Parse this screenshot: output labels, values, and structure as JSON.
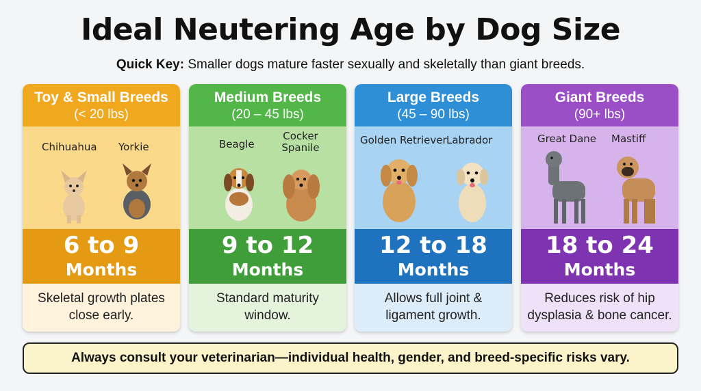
{
  "title": "Ideal Neutering Age by Dog Size",
  "quick_key": {
    "label": "Quick Key:",
    "text": "Smaller dogs mature faster sexually and skeletally than giant breeds."
  },
  "cards": [
    {
      "name": "Toy & Small Breeds",
      "weight": "(< 20 lbs)",
      "breeds": [
        "Chihuahua",
        "Yorkie"
      ],
      "age_range": "6 to 9",
      "age_unit": "Months",
      "note": "Skeletal growth plates close early.",
      "colors": {
        "head": "#f0a81f",
        "image": "#fbd98a",
        "age": "#e59a14",
        "note": "#fdf3dc"
      }
    },
    {
      "name": "Medium Breeds",
      "weight": "(20 – 45 lbs)",
      "breeds": [
        "Beagle",
        "Cocker Spanile"
      ],
      "age_range": "9 to 12",
      "age_unit": "Months",
      "note": "Standard maturity window.",
      "colors": {
        "head": "#52b648",
        "image": "#b8e0a3",
        "age": "#3f9e3a",
        "note": "#e3f3dc"
      }
    },
    {
      "name": "Large Breeds",
      "weight": "(45 – 90 lbs)",
      "breeds": [
        "Golden Retriever",
        "Labrador"
      ],
      "age_range": "12 to 18",
      "age_unit": "Months",
      "note": "Allows full joint & ligament growth.",
      "colors": {
        "head": "#2f8fd6",
        "image": "#a9d3f2",
        "age": "#1f72bd",
        "note": "#dcedf9"
      }
    },
    {
      "name": "Giant Breeds",
      "weight": "(90+ lbs)",
      "breeds": [
        "Great Dane",
        "Mastiff"
      ],
      "age_range": "18 to 24",
      "age_unit": "Months",
      "note": "Reduces risk of hip dysplasia & bone cancer.",
      "colors": {
        "head": "#9a4fc6",
        "image": "#d6b3ea",
        "age": "#7e34b0",
        "note": "#efe1f7"
      }
    }
  ],
  "footer": "Always consult your veterinarian—individual health, gender, and breed-specific risks vary."
}
